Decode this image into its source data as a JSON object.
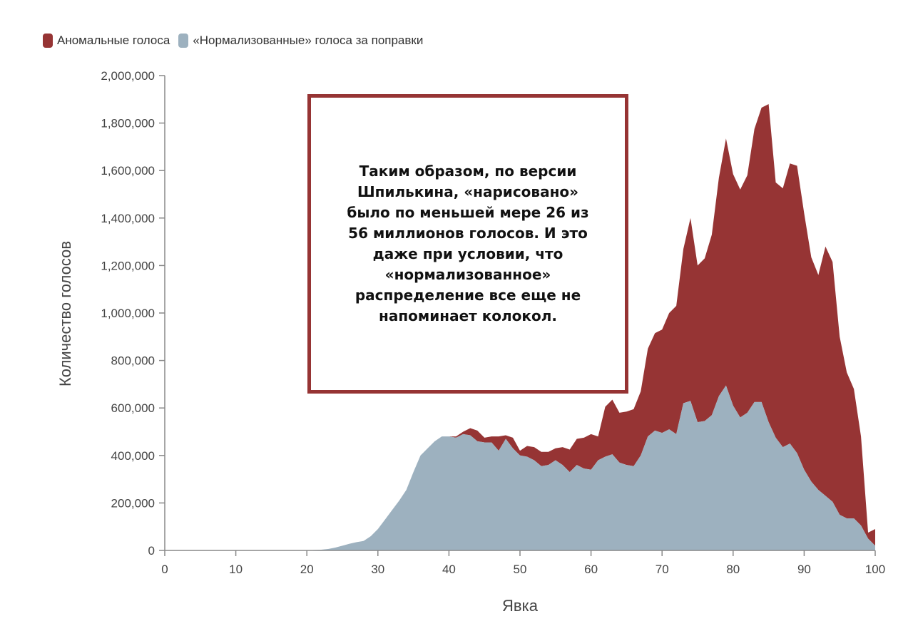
{
  "legend": {
    "anomalous_label": "Аномальные голоса",
    "normalized_label": "«Нормализованные» голоса за поправки"
  },
  "annotation": "Таким образом, по версии Шпилькина, «нарисовано» было по меньшей мере 26 из 56 миллионов голосов. И это даже при условии, что «нормализованное» распределение все еще не напоминает колокол.",
  "colors": {
    "anomalous": "#963434",
    "normalized": "#9db1bf",
    "axis": "#888888"
  },
  "chart_data": {
    "type": "area",
    "stacked": true,
    "xlabel": "Явка",
    "ylabel": "Количество голосов",
    "xlim": [
      0,
      100
    ],
    "ylim": [
      0,
      2000000
    ],
    "x_ticks": [
      0,
      10,
      20,
      30,
      40,
      50,
      60,
      70,
      80,
      90,
      100
    ],
    "y_ticks": [
      0,
      200000,
      400000,
      600000,
      800000,
      1000000,
      1200000,
      1400000,
      1600000,
      1800000,
      2000000
    ],
    "y_tick_labels": [
      "0",
      "200,000",
      "400,000",
      "600,000",
      "800,000",
      "1,000,000",
      "1,200,000",
      "1,400,000",
      "1,600,000",
      "1,800,000",
      "2,000,000"
    ],
    "grid": false,
    "legend_position": "top-left",
    "x": [
      0,
      5,
      10,
      15,
      20,
      21,
      22,
      23,
      24,
      25,
      26,
      27,
      28,
      29,
      30,
      31,
      32,
      33,
      34,
      35,
      36,
      37,
      38,
      39,
      40,
      41,
      42,
      43,
      44,
      45,
      46,
      47,
      48,
      49,
      50,
      51,
      52,
      53,
      54,
      55,
      56,
      57,
      58,
      59,
      60,
      61,
      62,
      63,
      64,
      65,
      66,
      67,
      68,
      69,
      70,
      71,
      72,
      73,
      74,
      75,
      76,
      77,
      78,
      79,
      80,
      81,
      82,
      83,
      84,
      85,
      86,
      87,
      88,
      89,
      90,
      91,
      92,
      93,
      94,
      95,
      96,
      97,
      98,
      99,
      100
    ],
    "series": [
      {
        "name": "«Нормализованные» голоса за поправки",
        "values": [
          0,
          0,
          0,
          0,
          0,
          2000,
          3000,
          6000,
          12000,
          20000,
          28000,
          35000,
          40000,
          60000,
          90000,
          130000,
          170000,
          210000,
          255000,
          330000,
          400000,
          430000,
          460000,
          480000,
          480000,
          475000,
          490000,
          485000,
          460000,
          455000,
          455000,
          420000,
          470000,
          430000,
          400000,
          395000,
          380000,
          355000,
          360000,
          380000,
          360000,
          330000,
          360000,
          345000,
          340000,
          380000,
          395000,
          405000,
          370000,
          360000,
          355000,
          400000,
          480000,
          505000,
          495000,
          510000,
          490000,
          620000,
          630000,
          540000,
          545000,
          570000,
          650000,
          695000,
          610000,
          560000,
          580000,
          625000,
          625000,
          540000,
          475000,
          435000,
          450000,
          410000,
          340000,
          290000,
          255000,
          230000,
          205000,
          150000,
          135000,
          135000,
          105000,
          50000,
          20000
        ]
      },
      {
        "name": "Аномальные голоса",
        "values": [
          0,
          0,
          0,
          0,
          0,
          0,
          0,
          0,
          0,
          0,
          0,
          0,
          0,
          0,
          0,
          0,
          0,
          0,
          0,
          0,
          0,
          0,
          0,
          0,
          0,
          5000,
          10000,
          30000,
          45000,
          20000,
          25000,
          60000,
          15000,
          45000,
          20000,
          45000,
          55000,
          60000,
          55000,
          50000,
          75000,
          95000,
          110000,
          130000,
          150000,
          100000,
          210000,
          230000,
          210000,
          225000,
          240000,
          270000,
          370000,
          410000,
          435000,
          490000,
          540000,
          650000,
          770000,
          660000,
          685000,
          760000,
          920000,
          1040000,
          975000,
          960000,
          1000000,
          1150000,
          1240000,
          1340000,
          1075000,
          1090000,
          1180000,
          1210000,
          1080000,
          945000,
          905000,
          1050000,
          1010000,
          750000,
          615000,
          545000,
          375000,
          25000,
          70000
        ]
      }
    ]
  }
}
